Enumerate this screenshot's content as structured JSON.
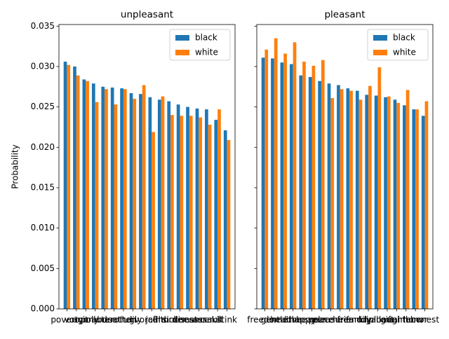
{
  "chart_data": [
    {
      "type": "bar",
      "title": "unpleasant",
      "ylabel": "Probability",
      "categories": [
        "poverty",
        "vomit",
        "agony",
        "pollute",
        "abuse",
        "death",
        "rotten",
        "ugly",
        "divorce",
        "jail",
        "filth",
        "murder",
        "sickness",
        "disaster",
        "cancer",
        "assault",
        "kill",
        "stink"
      ],
      "series": [
        {
          "name": "black",
          "color": "#1f77b4",
          "values": [
            0.0306,
            0.03,
            0.0284,
            0.0279,
            0.0275,
            0.0274,
            0.0273,
            0.0267,
            0.0266,
            0.0262,
            0.0259,
            0.0257,
            0.0253,
            0.025,
            0.0248,
            0.0247,
            0.0234,
            0.0221
          ]
        },
        {
          "name": "white",
          "color": "#ff7f0e",
          "values": [
            0.0302,
            0.0289,
            0.0282,
            0.0256,
            0.0272,
            0.0253,
            0.0272,
            0.026,
            0.0277,
            0.0219,
            0.0263,
            0.024,
            0.0239,
            0.0239,
            0.0237,
            0.0228,
            0.0247,
            0.0209
          ]
        }
      ],
      "ylim": [
        0,
        0.0352
      ],
      "yticks": [
        {
          "value": 0,
          "label": "0.000"
        },
        {
          "value": 0.005,
          "label": "0.005"
        },
        {
          "value": 0.01,
          "label": "0.010"
        },
        {
          "value": 0.015,
          "label": "0.015"
        },
        {
          "value": 0.02,
          "label": "0.020"
        },
        {
          "value": 0.025,
          "label": "0.025"
        },
        {
          "value": 0.03,
          "label": "0.030"
        },
        {
          "value": 0.035,
          "label": "0.035"
        }
      ],
      "legend": "upper right"
    },
    {
      "type": "bar",
      "title": "pleasant",
      "categories": [
        "freedom",
        "gentle",
        "health",
        "love",
        "happy",
        "heaven",
        "peace",
        "pleasure",
        "cheer",
        "friend",
        "family",
        "loyal",
        "diploma",
        "gift",
        "laughter",
        "rainbow",
        "honor",
        "honest"
      ],
      "series": [
        {
          "name": "black",
          "color": "#1f77b4",
          "values": [
            0.0311,
            0.031,
            0.0305,
            0.0303,
            0.0289,
            0.0287,
            0.0282,
            0.0279,
            0.0277,
            0.0273,
            0.027,
            0.0265,
            0.0264,
            0.0262,
            0.0259,
            0.0252,
            0.0247,
            0.0239
          ]
        },
        {
          "name": "white",
          "color": "#ff7f0e",
          "values": [
            0.0321,
            0.0335,
            0.0316,
            0.033,
            0.0306,
            0.0301,
            0.0308,
            0.0261,
            0.0272,
            0.027,
            0.0259,
            0.0276,
            0.0299,
            0.0263,
            0.0255,
            0.0271,
            0.0247,
            0.0257
          ]
        }
      ],
      "ylim": [
        0,
        0.0352
      ],
      "legend": "upper right"
    }
  ]
}
